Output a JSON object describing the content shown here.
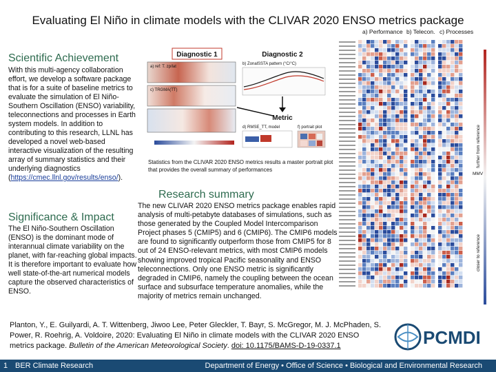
{
  "title": "Evaluating El Niño in climate models with the CLIVAR 2020 ENSO metrics package",
  "sci_achievement": {
    "heading": "Scientific Achievement",
    "text_before_link": "With this multi-agency collaboration effort, we develop a software package that is for a suite of baseline metrics to evaluate the simulation of El Niño-Southern Oscillation (ENSO) variability, teleconnections and processes in Earth system models. In addition to contributing to this research, LLNL has developed a novel web-based interactive visualization of the resulting array of summary statistics and their underlying diagnostics (",
    "link": "https://cmec.llnl.gov/results/enso/",
    "text_after_link": ")."
  },
  "significance": {
    "heading": "Significance & Impact",
    "text": "The El Niño-Southern Oscillation (ENSO) is the dominant mode of interannual climate variability on the planet, with far-reaching global impacts. It is therefore important to evaluate how well state-of-the-art numerical models capture the observed characteristics of ENSO."
  },
  "figure": {
    "diag1": "Diagnostic 1",
    "diag2": "Diagnostic 2",
    "metric": "Metric",
    "panel_a_label": "a) ref: T. zp/lat",
    "panel_b_label": "b) ZonalSSTA pattern (°C/°C)",
    "panel_c_label": "c) TRGMA(TT)",
    "panel_d_label": "d) RMSE_TT, model",
    "panel_f_label": "f) portrait plot",
    "caption": "Statistics from the CLIVAR 2020 ENSO metrics results a master portrait plot that provides the overall summary of performances"
  },
  "heatmap": {
    "col_a": "a) Performance",
    "col_b": "b) Telecon.",
    "col_c": "c) Processes",
    "side_label_top": "further from reference",
    "side_label_bottom": "closer to reference",
    "mmv_label": "MMV"
  },
  "research_summary": {
    "heading": "Research summary",
    "text": "The new CLIVAR 2020 ENSO metrics package enables rapid analysis of multi-petabyte databases of simulations, such as those generated by the Coupled Model Intercomparison Project phases 5 (CMIP5) and 6 (CMIP6). The CMIP6 models are found to significantly outperform those from CMIP5 for 8 out of 24 ENSO-relevant metrics, with most CMIP6 models showing improved tropical Pacific seasonality and ENSO teleconnections. Only one ENSO metric is significantly degraded in CMIP6, namely the coupling between the ocean surface and subsurface temperature anomalies, while the majority of metrics remain unchanged."
  },
  "citation": {
    "authors": "Planton, Y., E. Guilyardi, A. T. Wittenberg, Jiwoo Lee, Peter Gleckler, T. Bayr, S. McGregor, M. J. McPhaden, S. Power, R. Roehrig, A. Voldoire, 2020: Evaluating El Niño in climate models with the CLIVAR 2020 ENSO metrics package.",
    "journal": "Bulletin of the American Meteorological Society",
    "doi": "doi: 10.1175/BAMS-D-19-0337.1"
  },
  "logo": {
    "text": "PCMDI"
  },
  "footer": {
    "page_num": "1",
    "left": "BER Climate Research",
    "right": "Department of Energy  •  Office of Science  •  Biological and Environmental Research"
  },
  "colors": {
    "heading_green": "#2e6b4f",
    "footer_blue": "#1a4a73",
    "link_blue": "#1a3e9a"
  }
}
